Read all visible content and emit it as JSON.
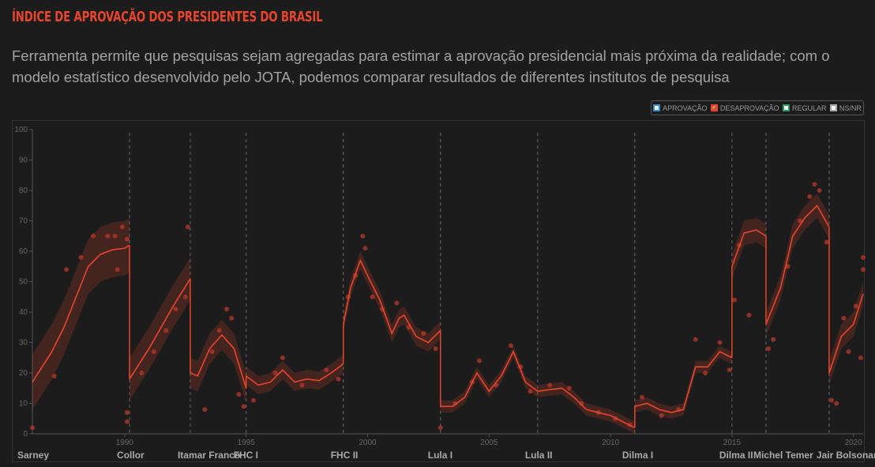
{
  "title": "ÍNDICE DE APROVAÇÃO DOS PRESIDENTES DO BRASIL",
  "subtitle": "Ferramenta permite que pesquisas sejam agregadas para estimar a aprovação presidencial mais próxima da realidade; com o modelo estatístico desenvolvido pelo JOTA, podemos comparar resultados de diferentes institutos de pesquisa",
  "legend": [
    {
      "label": "APROVAÇÃO",
      "color": "#2e8fd6",
      "checked": false
    },
    {
      "label": "DESAPROVAÇÃO",
      "color": "#e8452c",
      "checked": true
    },
    {
      "label": "REGULAR",
      "color": "#2e9e5e",
      "checked": false
    },
    {
      "label": "NS/NR",
      "color": "#aaaaaa",
      "checked": false
    }
  ],
  "chart_data": {
    "type": "line",
    "xlim": [
      1986.2,
      2020.4
    ],
    "ylim": [
      0,
      100
    ],
    "yticks": [
      0,
      10,
      20,
      30,
      40,
      50,
      60,
      70,
      80,
      90,
      100
    ],
    "xticks": [
      1990,
      1995,
      2000,
      2005,
      2010,
      2015,
      2020
    ],
    "grid": false,
    "series_color": "#e8452c",
    "term_starts": [
      1990.2,
      1992.7,
      1995.0,
      1999.0,
      2003.0,
      2007.0,
      2011.0,
      2015.0,
      2016.4,
      2019.0
    ],
    "presidents": [
      {
        "name": "Sarney",
        "start": 1986.2
      },
      {
        "name": "Collor",
        "start": 1990.2
      },
      {
        "name": "Itamar Franco",
        "start": 1992.7
      },
      {
        "name": "FHC I",
        "start": 1995.0
      },
      {
        "name": "FHC II",
        "start": 1999.0
      },
      {
        "name": "Lula I",
        "start": 2003.0
      },
      {
        "name": "Lula II",
        "start": 2007.0
      },
      {
        "name": "Dilma I",
        "start": 2011.0
      },
      {
        "name": "Dilma II",
        "start": 2015.0
      },
      {
        "name": "Michel Temer",
        "start": 2016.4
      },
      {
        "name": "Jair Bolsonaro",
        "start": 2019.0
      }
    ],
    "segments": [
      {
        "ci": 9,
        "points": [
          [
            1986.2,
            17
          ],
          [
            1987,
            27
          ],
          [
            1987.5,
            35
          ],
          [
            1988,
            45
          ],
          [
            1988.5,
            55
          ],
          [
            1989,
            59
          ],
          [
            1989.5,
            60.5
          ],
          [
            1990,
            61
          ],
          [
            1990.2,
            62
          ]
        ]
      },
      {
        "ci": 7,
        "points": [
          [
            1990.2,
            18
          ],
          [
            1991,
            28
          ],
          [
            1992,
            42
          ],
          [
            1992.7,
            51
          ]
        ]
      },
      {
        "ci": 5,
        "points": [
          [
            1992.7,
            20
          ],
          [
            1993,
            19
          ],
          [
            1993.5,
            28
          ],
          [
            1994,
            32.5
          ],
          [
            1994.5,
            28
          ],
          [
            1995,
            15
          ]
        ]
      },
      {
        "ci": 3,
        "points": [
          [
            1995,
            19
          ],
          [
            1995.5,
            16
          ],
          [
            1996,
            17
          ],
          [
            1996.5,
            21
          ],
          [
            1997,
            17
          ],
          [
            1997.5,
            18
          ],
          [
            1998,
            17.5
          ],
          [
            1998.5,
            20
          ],
          [
            1999,
            23
          ]
        ]
      },
      {
        "ci": 3,
        "points": [
          [
            1999,
            36
          ],
          [
            1999.3,
            48
          ],
          [
            1999.7,
            57
          ],
          [
            2000,
            52
          ],
          [
            2000.5,
            44
          ],
          [
            2001,
            33
          ],
          [
            2001.3,
            38
          ],
          [
            2001.5,
            39
          ],
          [
            2002,
            32
          ],
          [
            2002.5,
            30
          ],
          [
            2003,
            34
          ]
        ]
      },
      {
        "ci": 2,
        "points": [
          [
            2003,
            9
          ],
          [
            2003.5,
            9
          ],
          [
            2004,
            12
          ],
          [
            2004.5,
            20
          ],
          [
            2005,
            14
          ],
          [
            2005.5,
            19
          ],
          [
            2006,
            27
          ],
          [
            2006.5,
            17
          ],
          [
            2007,
            14
          ]
        ]
      },
      {
        "ci": 2,
        "points": [
          [
            2007,
            14
          ],
          [
            2008,
            15
          ],
          [
            2008.5,
            12
          ],
          [
            2009,
            8
          ],
          [
            2010,
            6
          ],
          [
            2010.5,
            4
          ],
          [
            2011,
            2
          ]
        ]
      },
      {
        "ci": 2,
        "points": [
          [
            2011,
            9
          ],
          [
            2011.5,
            10
          ],
          [
            2012,
            8
          ],
          [
            2012.5,
            7
          ],
          [
            2013,
            8
          ],
          [
            2013.5,
            22
          ],
          [
            2014,
            22
          ],
          [
            2014.5,
            27
          ],
          [
            2015,
            25
          ]
        ]
      },
      {
        "ci": 4,
        "points": [
          [
            2015,
            55
          ],
          [
            2015.5,
            66
          ],
          [
            2016,
            67
          ],
          [
            2016.4,
            65
          ]
        ]
      },
      {
        "ci": 4,
        "points": [
          [
            2016.4,
            36
          ],
          [
            2017,
            48
          ],
          [
            2017.5,
            65
          ],
          [
            2018,
            71
          ],
          [
            2018.5,
            75
          ],
          [
            2019,
            68
          ]
        ]
      },
      {
        "ci": 4,
        "points": [
          [
            2019,
            20
          ],
          [
            2019.5,
            32
          ],
          [
            2020,
            36
          ],
          [
            2020.4,
            46
          ]
        ]
      }
    ],
    "polls": [
      [
        1986.2,
        2
      ],
      [
        1987.1,
        19
      ],
      [
        1987.6,
        54
      ],
      [
        1988.2,
        58
      ],
      [
        1988.7,
        65
      ],
      [
        1989.3,
        65
      ],
      [
        1989.6,
        65
      ],
      [
        1989.9,
        68
      ],
      [
        1990.1,
        64
      ],
      [
        1989.7,
        54
      ],
      [
        1990.1,
        7
      ],
      [
        1990.1,
        4
      ],
      [
        1990.7,
        20
      ],
      [
        1991.2,
        27
      ],
      [
        1991.7,
        34
      ],
      [
        1992.1,
        41
      ],
      [
        1992.5,
        45
      ],
      [
        1992.6,
        68
      ],
      [
        1993.3,
        8
      ],
      [
        1993.6,
        27
      ],
      [
        1993.9,
        34
      ],
      [
        1994.2,
        41
      ],
      [
        1994.4,
        38
      ],
      [
        1994.7,
        13
      ],
      [
        1994.9,
        9
      ],
      [
        1995.3,
        11
      ],
      [
        1996.2,
        20
      ],
      [
        1996.5,
        25
      ],
      [
        1997.3,
        16
      ],
      [
        1998.3,
        21
      ],
      [
        1998.8,
        18
      ],
      [
        1999.2,
        45
      ],
      [
        1999.5,
        52
      ],
      [
        1999.8,
        65
      ],
      [
        1999.9,
        61
      ],
      [
        2000.2,
        45
      ],
      [
        2000.6,
        41
      ],
      [
        2001.2,
        43
      ],
      [
        2001.7,
        35
      ],
      [
        2002.3,
        33
      ],
      [
        2002.8,
        28
      ],
      [
        2003,
        2
      ],
      [
        2003.6,
        10
      ],
      [
        2004.3,
        17
      ],
      [
        2004.6,
        24
      ],
      [
        2005.3,
        16
      ],
      [
        2005.9,
        29
      ],
      [
        2006.3,
        22
      ],
      [
        2006.7,
        14
      ],
      [
        2007.5,
        16
      ],
      [
        2008.3,
        15
      ],
      [
        2008.8,
        10
      ],
      [
        2009.5,
        7
      ],
      [
        2010.2,
        5
      ],
      [
        2010.8,
        3
      ],
      [
        2011.3,
        12
      ],
      [
        2012.1,
        6
      ],
      [
        2012.8,
        8
      ],
      [
        2013.5,
        31
      ],
      [
        2013.9,
        20
      ],
      [
        2014.5,
        30
      ],
      [
        2014.9,
        21
      ],
      [
        2015.1,
        44
      ],
      [
        2015.3,
        62
      ],
      [
        2015.7,
        39
      ],
      [
        2016.5,
        28
      ],
      [
        2016.7,
        31
      ],
      [
        2017.3,
        55
      ],
      [
        2017.8,
        70
      ],
      [
        2018.2,
        78
      ],
      [
        2018.4,
        82
      ],
      [
        2018.6,
        80
      ],
      [
        2018.9,
        63
      ],
      [
        2019.1,
        11
      ],
      [
        2019.3,
        10
      ],
      [
        2019.6,
        38
      ],
      [
        2019.8,
        27
      ],
      [
        2020.1,
        42
      ],
      [
        2020.3,
        25
      ],
      [
        2020.4,
        58
      ],
      [
        2020.4,
        54
      ]
    ]
  }
}
